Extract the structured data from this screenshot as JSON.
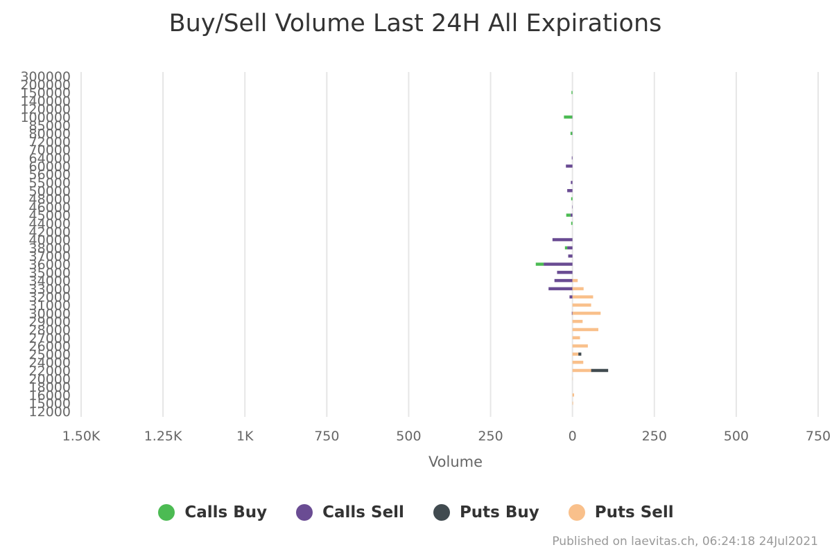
{
  "chart_data": {
    "type": "bar",
    "orientation": "horizontal",
    "stacking": "diverging",
    "title": "Buy/Sell Volume Last 24H All Expirations",
    "xlabel": "Volume",
    "ylabel": "",
    "xlim": [
      -1500,
      750
    ],
    "x_tick_values": [
      -1500,
      -1250,
      -1000,
      -750,
      -500,
      -250,
      0,
      250,
      500,
      750
    ],
    "x_tick_labels": [
      "1.50K",
      "1.25K",
      "1K",
      "750",
      "500",
      "250",
      "0",
      "250",
      "500",
      "750"
    ],
    "grid": true,
    "legend_position": "bottom",
    "categories": [
      "300000",
      "200000",
      "150000",
      "140000",
      "120000",
      "100000",
      "85000",
      "80000",
      "72000",
      "70000",
      "64000",
      "60000",
      "56000",
      "55000",
      "50000",
      "48000",
      "46000",
      "45000",
      "44000",
      "42000",
      "40000",
      "38000",
      "37000",
      "36000",
      "35000",
      "34000",
      "33000",
      "32000",
      "31000",
      "30000",
      "29000",
      "28000",
      "27000",
      "26000",
      "25000",
      "24000",
      "22000",
      "20000",
      "18000",
      "16000",
      "15000",
      "12000"
    ],
    "series": [
      {
        "name": "Calls Buy",
        "color": "#4cbb53",
        "values": [
          0,
          0,
          3,
          0,
          0,
          25,
          0,
          5,
          0,
          0,
          0,
          0,
          0,
          0,
          0,
          4,
          0,
          13,
          4,
          0,
          0,
          7,
          0,
          24,
          0,
          0,
          0,
          0,
          0,
          0,
          0,
          0,
          0,
          0,
          0,
          0,
          0,
          0,
          0,
          0,
          0,
          0
        ]
      },
      {
        "name": "Calls Sell",
        "color": "#6a4c93",
        "values": [
          0,
          0,
          0,
          0,
          0,
          1,
          0,
          1,
          0,
          0,
          2,
          20,
          0,
          5,
          16,
          0,
          1,
          6,
          0,
          0,
          61,
          16,
          13,
          88,
          47,
          55,
          73,
          9,
          0,
          2,
          0,
          0,
          0,
          0,
          0,
          0,
          0,
          0,
          0,
          0,
          0,
          0
        ]
      },
      {
        "name": "Puts Buy",
        "color": "#414b50",
        "values": [
          0,
          0,
          0,
          0,
          0,
          0,
          0,
          0,
          0,
          0,
          0,
          0,
          0,
          0,
          0,
          0,
          0,
          0,
          0,
          0,
          0,
          0,
          0,
          0,
          0,
          0,
          0,
          0,
          0,
          0,
          0,
          0,
          0,
          0,
          9,
          0,
          52,
          0,
          0,
          0,
          0,
          0
        ]
      },
      {
        "name": "Puts Sell",
        "color": "#f9c08b",
        "values": [
          0,
          0,
          0,
          0,
          0,
          0,
          0,
          0,
          0,
          0,
          0,
          0,
          0,
          0,
          0,
          0,
          0,
          0,
          0,
          0,
          0,
          0,
          0,
          0,
          0,
          16,
          34,
          63,
          57,
          86,
          31,
          79,
          23,
          47,
          18,
          33,
          57,
          1,
          0,
          5,
          2,
          0
        ]
      }
    ]
  },
  "legend": {
    "items": [
      {
        "label": "Calls Buy",
        "color": "#4cbb53"
      },
      {
        "label": "Calls Sell",
        "color": "#6a4c93"
      },
      {
        "label": "Puts Buy",
        "color": "#414b50"
      },
      {
        "label": "Puts Sell",
        "color": "#f9c08b"
      }
    ]
  },
  "credit": "Published on laevitas.ch, 06:24:18 24Jul2021"
}
